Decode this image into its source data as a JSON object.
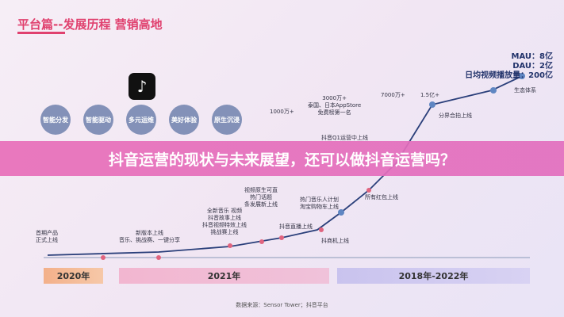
{
  "header": {
    "title": "平台篇--发展历程 营销高地"
  },
  "stats": [
    "MAU：8亿",
    "DAU：2亿",
    "日均视频播放量：200亿"
  ],
  "features": [
    "智能分发",
    "智能驱动",
    "多元运维",
    "美好体验",
    "原生沉浸"
  ],
  "milestones": [
    "首期产品\n正式上线",
    "新版本上线\n音乐、挑战赛、一键分享",
    "全新音乐 视频\n抖音故事上线\n抖音视频特效上线\n挑战赛上线",
    "视频原生可直\n热门话题\n条发展新上线",
    "1000万+",
    "3000万+\n泰国、日本AppStore\n免费榜第一名",
    "抖音Q1运营中上线",
    "抖音直播上线",
    "抖商机上线",
    "热门音乐人计划\n淘宝购物车上线",
    "所有红包上线",
    "7000万+",
    "1.5亿+",
    "分界合拍上线",
    "生态体系"
  ],
  "years": [
    "2020年",
    "2021年",
    "2018年-2022年"
  ],
  "banner": "抖音运营的现状与未来展望，还可以做抖音运营吗？",
  "source": "数据来源：Sensor Tower；抖音平台"
}
